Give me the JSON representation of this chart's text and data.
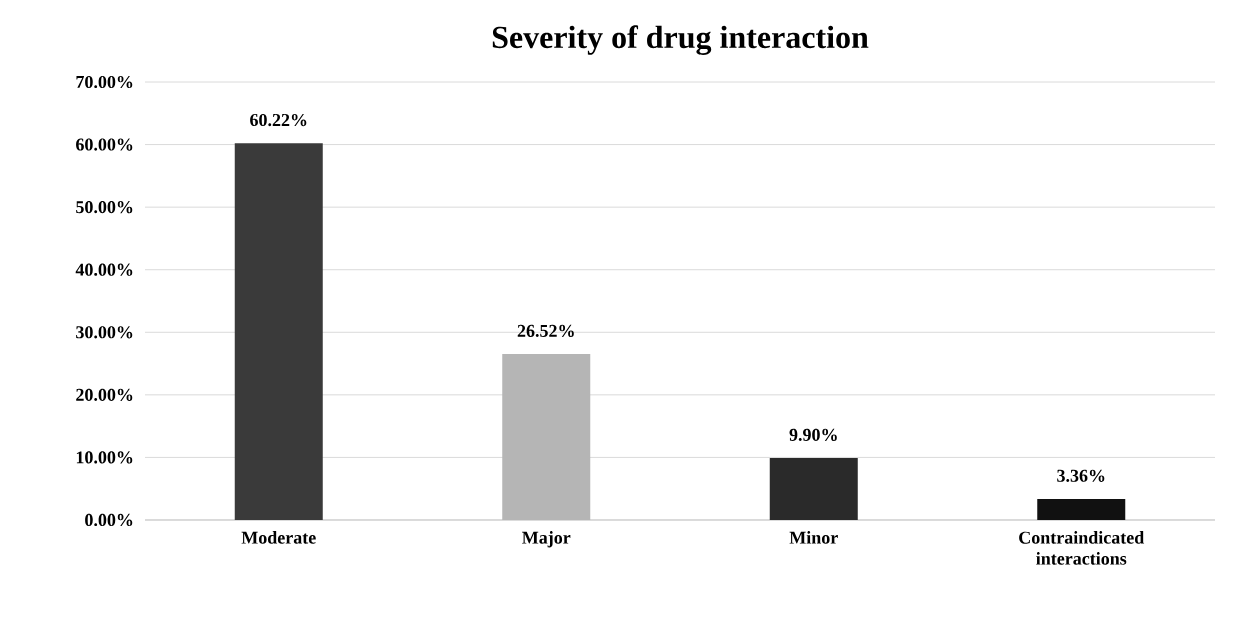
{
  "chart_data": {
    "type": "bar",
    "title": "Severity of drug interaction",
    "categories": [
      "Moderate",
      "Major",
      "Minor",
      "Contraindicated interactions"
    ],
    "values": [
      60.22,
      26.52,
      9.9,
      3.36
    ],
    "value_labels": [
      "60.22%",
      "26.52%",
      "9.90%",
      "3.36%"
    ],
    "colors": [
      "#3a3a3a",
      "#b5b5b5",
      "#2a2a2a",
      "#111111"
    ],
    "ylim": [
      0,
      70
    ],
    "yticks": [
      {
        "value": 0,
        "label": "0.00%"
      },
      {
        "value": 10,
        "label": "10.00%"
      },
      {
        "value": 20,
        "label": "20.00%"
      },
      {
        "value": 30,
        "label": "30.00%"
      },
      {
        "value": 40,
        "label": "40.00%"
      },
      {
        "value": 50,
        "label": "50.00%"
      },
      {
        "value": 60,
        "label": "60.00%"
      },
      {
        "value": 70,
        "label": "70.00%"
      }
    ],
    "grid": "y"
  }
}
